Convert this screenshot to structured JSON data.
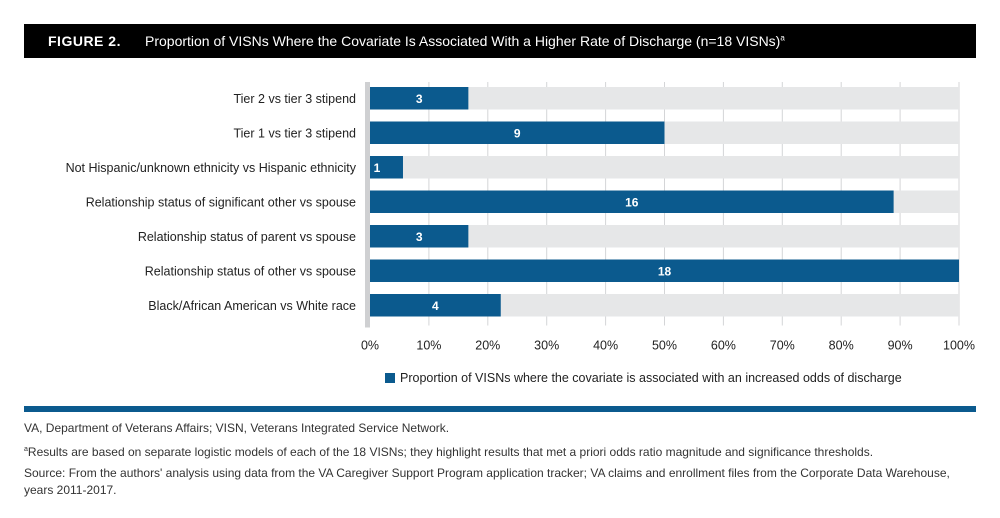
{
  "figure": {
    "label": "FIGURE 2.",
    "title": "Proportion of VISNs Where the Covariate Is Associated With a Higher Rate of Discharge (n=18 VISNs)",
    "title_superscript": "a"
  },
  "chart_data": {
    "type": "bar",
    "orientation": "horizontal",
    "title": "Proportion of VISNs Where the Covariate Is Associated With a Higher Rate of Discharge (n=18 VISNs)",
    "total_visns": 18,
    "categories": [
      "Tier 2 vs tier 3 stipend",
      "Tier 1 vs tier 3 stipend",
      "Not Hispanic/unknown ethnicity vs Hispanic ethnicity",
      "Relationship status of significant other vs spouse",
      "Relationship status of parent vs spouse",
      "Relationship status of other vs spouse",
      "Black/African American vs White race"
    ],
    "series": [
      {
        "name": "Proportion of VISNs where the covariate is associated with an increased odds of discharge",
        "color": "#0b5a8e",
        "counts": [
          3,
          9,
          1,
          16,
          3,
          18,
          4
        ],
        "values": [
          16.7,
          50.0,
          5.6,
          88.9,
          16.7,
          100.0,
          22.2
        ]
      }
    ],
    "background_track_color": "#e6e7e8",
    "xlabel": "",
    "ylabel": "",
    "xlim": [
      0,
      100
    ],
    "x_ticks": [
      "0%",
      "10%",
      "20%",
      "30%",
      "40%",
      "50%",
      "60%",
      "70%",
      "80%",
      "90%",
      "100%"
    ],
    "grid": true,
    "legend_position": "bottom"
  },
  "legend": {
    "label": "Proportion of VISNs where the covariate is associated with an increased odds of discharge"
  },
  "notes": {
    "abbreviations": "VA, Department of Veterans Affairs; VISN, Veterans Integrated Service Network.",
    "footnote_marker": "a",
    "footnote": "Results are based on separate logistic models of each of the 18 VISNs; they highlight results that met a priori odds ratio magnitude and significance thresholds.",
    "source": "Source: From the authors' analysis using data from the VA Caregiver Support Program application tracker; VA claims and enrollment files from the Corporate Data Warehouse, years 2011-2017."
  }
}
